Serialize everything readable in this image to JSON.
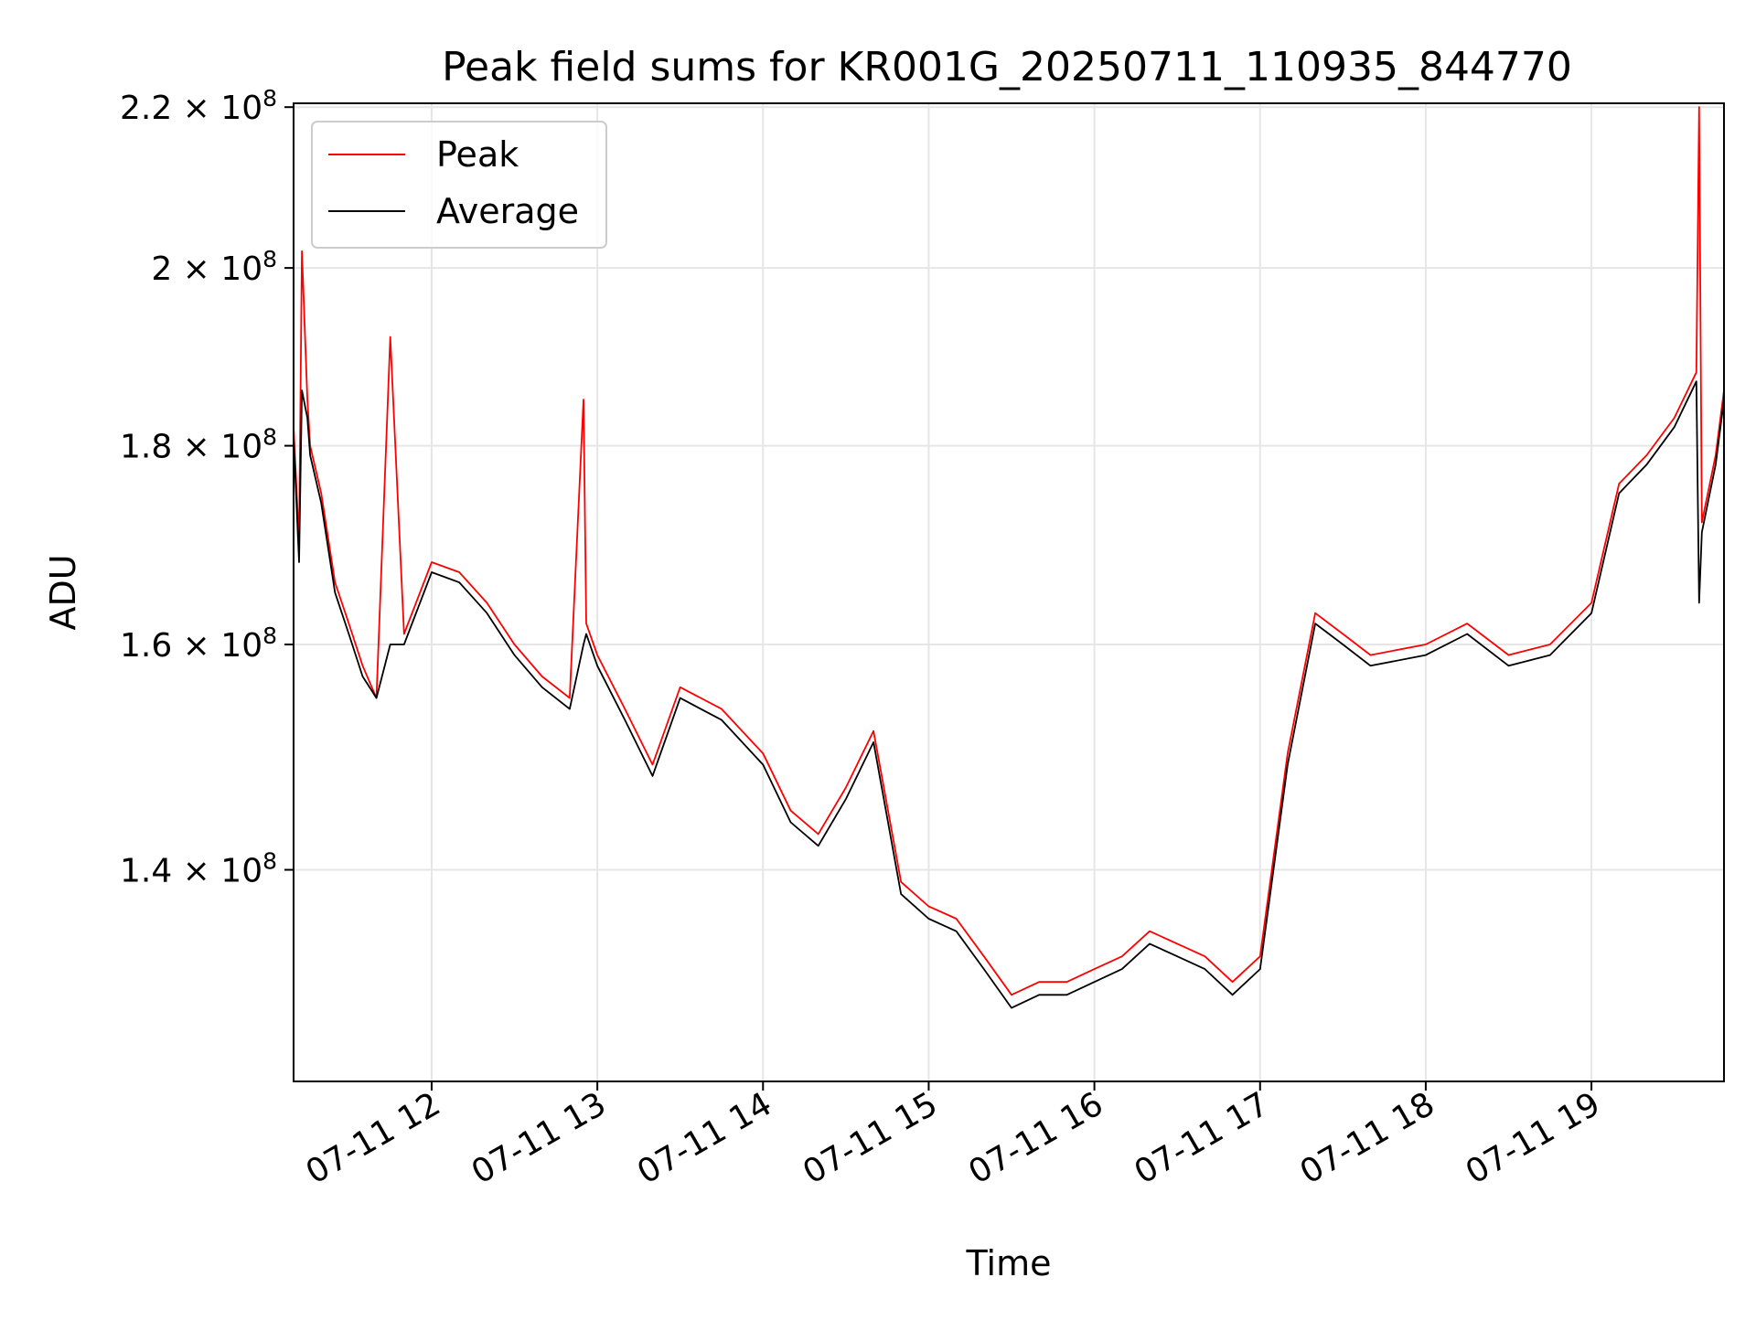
{
  "chart_data": {
    "type": "line",
    "title": "Peak field sums for KR001G_20250711_110935_844770",
    "xlabel": "Time",
    "ylabel": "ADU",
    "y_scale": "log",
    "xlim": [
      "2025-07-11 11:10",
      "2025-07-11 19:48"
    ],
    "ylim": [
      123500000,
      220500000
    ],
    "x_ticks": [
      "07-11 12",
      "07-11 13",
      "07-11 14",
      "07-11 15",
      "07-11 16",
      "07-11 17",
      "07-11 18",
      "07-11 19"
    ],
    "y_ticks": [
      {
        "value": 140000000,
        "mantissa": "1.4",
        "exponent": "8"
      },
      {
        "value": 160000000,
        "mantissa": "1.6",
        "exponent": "8"
      },
      {
        "value": 180000000,
        "mantissa": "1.8",
        "exponent": "8"
      },
      {
        "value": 200000000,
        "mantissa": "2",
        "exponent": "8"
      },
      {
        "value": 220000000,
        "mantissa": "2.2",
        "exponent": "8"
      }
    ],
    "grid": true,
    "legend_position": "top-left",
    "series": [
      {
        "name": "Peak",
        "color": "#ff0000",
        "x": [
          "2025-07-11 11:10",
          "2025-07-11 11:12",
          "2025-07-11 11:13",
          "2025-07-11 11:15",
          "2025-07-11 11:16",
          "2025-07-11 11:20",
          "2025-07-11 11:25",
          "2025-07-11 11:30",
          "2025-07-11 11:35",
          "2025-07-11 11:40",
          "2025-07-11 11:45",
          "2025-07-11 11:50",
          "2025-07-11 12:00",
          "2025-07-11 12:10",
          "2025-07-11 12:20",
          "2025-07-11 12:30",
          "2025-07-11 12:40",
          "2025-07-11 12:50",
          "2025-07-11 12:55",
          "2025-07-11 12:56",
          "2025-07-11 13:00",
          "2025-07-11 13:10",
          "2025-07-11 13:20",
          "2025-07-11 13:30",
          "2025-07-11 13:45",
          "2025-07-11 14:00",
          "2025-07-11 14:10",
          "2025-07-11 14:20",
          "2025-07-11 14:30",
          "2025-07-11 14:40",
          "2025-07-11 14:50",
          "2025-07-11 15:00",
          "2025-07-11 15:10",
          "2025-07-11 15:20",
          "2025-07-11 15:30",
          "2025-07-11 15:40",
          "2025-07-11 15:50",
          "2025-07-11 16:00",
          "2025-07-11 16:10",
          "2025-07-11 16:20",
          "2025-07-11 16:30",
          "2025-07-11 16:40",
          "2025-07-11 16:50",
          "2025-07-11 17:00",
          "2025-07-11 17:10",
          "2025-07-11 17:20",
          "2025-07-11 17:30",
          "2025-07-11 17:40",
          "2025-07-11 18:00",
          "2025-07-11 18:15",
          "2025-07-11 18:30",
          "2025-07-11 18:45",
          "2025-07-11 19:00",
          "2025-07-11 19:10",
          "2025-07-11 19:20",
          "2025-07-11 19:30",
          "2025-07-11 19:38",
          "2025-07-11 19:39",
          "2025-07-11 19:40",
          "2025-07-11 19:45",
          "2025-07-11 19:48"
        ],
        "values": [
          182000000,
          170000000,
          202000000,
          185000000,
          180000000,
          175000000,
          166000000,
          162000000,
          158000000,
          155000000,
          192000000,
          161000000,
          168000000,
          167000000,
          164000000,
          160000000,
          157000000,
          155000000,
          185000000,
          162000000,
          159000000,
          154000000,
          149000000,
          156000000,
          154000000,
          150000000,
          145000000,
          143000000,
          147000000,
          152000000,
          139000000,
          137000000,
          136000000,
          133000000,
          130000000,
          131000000,
          131000000,
          132000000,
          133000000,
          135000000,
          134000000,
          133000000,
          131000000,
          133000000,
          150000000,
          163000000,
          161000000,
          159000000,
          160000000,
          162000000,
          159000000,
          160000000,
          164000000,
          176000000,
          179000000,
          183000000,
          188000000,
          220000000,
          172000000,
          179000000,
          186000000
        ]
      },
      {
        "name": "Average",
        "color": "#000000",
        "x": [
          "2025-07-11 11:10",
          "2025-07-11 11:12",
          "2025-07-11 11:13",
          "2025-07-11 11:15",
          "2025-07-11 11:16",
          "2025-07-11 11:20",
          "2025-07-11 11:25",
          "2025-07-11 11:30",
          "2025-07-11 11:35",
          "2025-07-11 11:40",
          "2025-07-11 11:45",
          "2025-07-11 11:50",
          "2025-07-11 12:00",
          "2025-07-11 12:10",
          "2025-07-11 12:20",
          "2025-07-11 12:30",
          "2025-07-11 12:40",
          "2025-07-11 12:50",
          "2025-07-11 12:55",
          "2025-07-11 12:56",
          "2025-07-11 13:00",
          "2025-07-11 13:10",
          "2025-07-11 13:20",
          "2025-07-11 13:30",
          "2025-07-11 13:45",
          "2025-07-11 14:00",
          "2025-07-11 14:10",
          "2025-07-11 14:20",
          "2025-07-11 14:30",
          "2025-07-11 14:40",
          "2025-07-11 14:50",
          "2025-07-11 15:00",
          "2025-07-11 15:10",
          "2025-07-11 15:20",
          "2025-07-11 15:30",
          "2025-07-11 15:40",
          "2025-07-11 15:50",
          "2025-07-11 16:00",
          "2025-07-11 16:10",
          "2025-07-11 16:20",
          "2025-07-11 16:30",
          "2025-07-11 16:40",
          "2025-07-11 16:50",
          "2025-07-11 17:00",
          "2025-07-11 17:10",
          "2025-07-11 17:20",
          "2025-07-11 17:30",
          "2025-07-11 17:40",
          "2025-07-11 18:00",
          "2025-07-11 18:15",
          "2025-07-11 18:30",
          "2025-07-11 18:45",
          "2025-07-11 19:00",
          "2025-07-11 19:10",
          "2025-07-11 19:20",
          "2025-07-11 19:30",
          "2025-07-11 19:38",
          "2025-07-11 19:39",
          "2025-07-11 19:40",
          "2025-07-11 19:45",
          "2025-07-11 19:48"
        ],
        "values": [
          181000000,
          168000000,
          186000000,
          183000000,
          179000000,
          174000000,
          165000000,
          161000000,
          157000000,
          155000000,
          160000000,
          160000000,
          167000000,
          166000000,
          163000000,
          159000000,
          156000000,
          154000000,
          160000000,
          161000000,
          158000000,
          153000000,
          148000000,
          155000000,
          153000000,
          149000000,
          144000000,
          142000000,
          146000000,
          151000000,
          138000000,
          136000000,
          135000000,
          132000000,
          129000000,
          130000000,
          130000000,
          131000000,
          132000000,
          134000000,
          133000000,
          132000000,
          130000000,
          132000000,
          149000000,
          162000000,
          160000000,
          158000000,
          159000000,
          161000000,
          158000000,
          159000000,
          163000000,
          175000000,
          178000000,
          182000000,
          187000000,
          164000000,
          171000000,
          178000000,
          185000000
        ]
      }
    ]
  }
}
